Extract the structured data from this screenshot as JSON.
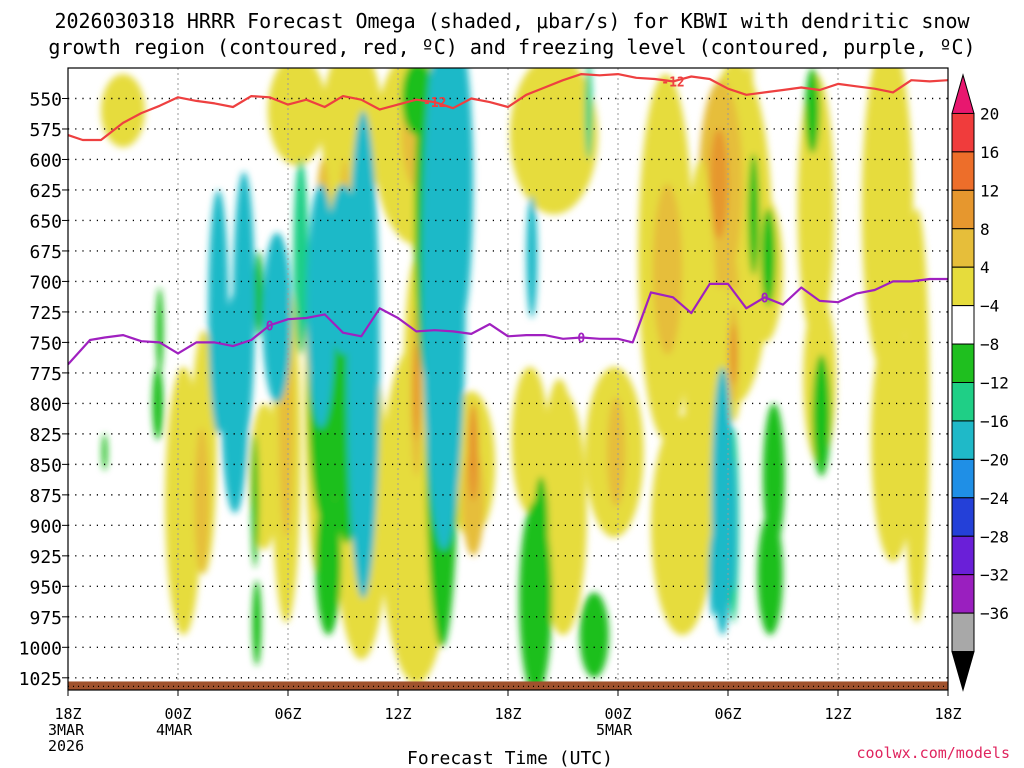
{
  "title": {
    "line1": "2026030318 HRRR Forecast Omega (shaded, μbar/s) for KBWI with dendritic snow",
    "line2": "growth region (contoured, red, ºC) and freezing level (contoured, purple, ºC)"
  },
  "credit": "coolwx.com/models",
  "chart_data": {
    "type": "contour-time-height",
    "title": "2026030318 HRRR Forecast Omega (shaded, μbar/s) for KBWI with dendritic snow growth region (contoured, red, ºC) and freezing level (contoured, purple, ºC)",
    "xlabel": "Forecast Time (UTC)",
    "ylabel": "",
    "xlim_hours": [
      0,
      48
    ],
    "ylim_hPa": [
      525,
      1035
    ],
    "x_ticks": [
      {
        "h": 0,
        "lines": [
          "18Z",
          "3MAR",
          "2026"
        ]
      },
      {
        "h": 6,
        "lines": [
          "00Z",
          "4MAR"
        ]
      },
      {
        "h": 12,
        "lines": [
          "06Z"
        ]
      },
      {
        "h": 18,
        "lines": [
          "12Z"
        ]
      },
      {
        "h": 24,
        "lines": [
          "18Z"
        ]
      },
      {
        "h": 30,
        "lines": [
          "00Z",
          "5MAR"
        ]
      },
      {
        "h": 36,
        "lines": [
          "06Z"
        ]
      },
      {
        "h": 42,
        "lines": [
          "12Z"
        ]
      },
      {
        "h": 48,
        "lines": [
          "18Z"
        ]
      }
    ],
    "y_ticks": [
      550,
      575,
      600,
      625,
      650,
      675,
      700,
      725,
      750,
      775,
      800,
      825,
      850,
      875,
      900,
      925,
      950,
      975,
      1000,
      1025
    ],
    "colorbar": {
      "labels": [
        "20",
        "16",
        "12",
        "8",
        "4",
        "−4",
        "−8",
        "−12",
        "−16",
        "−20",
        "−24",
        "−28",
        "−32",
        "−36"
      ],
      "colors": [
        "#e8176f",
        "#f03c3c",
        "#ed6e2a",
        "#e6972e",
        "#e6be3a",
        "#e6dc3c",
        "#ffffff",
        "#1fbf1f",
        "#1fcf86",
        "#1fb9c8",
        "#1f8fe6",
        "#2440d8",
        "#6a1fd8",
        "#9a1fbf",
        "#a8a8a8",
        "#000000"
      ]
    },
    "contours": [
      {
        "name": "dendritic snow growth -12C",
        "label": "-12",
        "color": "#ee4040",
        "hours": [
          0,
          0.8,
          1.8,
          3,
          4,
          5,
          6,
          7,
          8,
          9,
          10,
          11,
          12,
          13,
          14,
          15,
          16,
          17,
          18,
          19,
          20,
          21,
          22,
          23,
          24,
          25,
          26,
          27,
          28,
          29,
          30,
          31,
          32,
          33,
          34,
          35,
          36,
          37,
          38,
          39,
          40,
          41,
          42,
          43,
          44,
          45,
          46,
          47,
          48
        ],
        "pres": [
          580,
          584,
          584,
          570,
          562,
          556,
          549,
          552,
          554,
          557,
          548,
          549,
          555,
          551,
          557,
          548,
          551,
          559,
          555,
          551,
          553,
          558,
          550,
          553,
          557,
          547,
          541,
          535,
          530,
          531,
          530,
          533,
          534,
          536,
          532,
          534,
          542,
          547,
          545,
          543,
          541,
          543,
          538,
          540,
          542,
          545,
          535,
          536,
          535
        ]
      },
      {
        "name": "freezing level 0C",
        "label": "0",
        "color": "#a020c0",
        "hours": [
          0,
          1.2,
          2,
          3,
          4,
          5,
          6,
          7,
          8,
          9,
          10,
          11,
          12,
          13,
          14,
          15,
          16,
          17,
          18,
          19,
          20,
          21,
          22,
          23,
          24,
          25,
          26,
          27,
          28,
          29,
          30,
          30.8,
          31.8,
          33,
          34,
          35,
          36,
          37,
          38,
          39,
          40,
          41,
          42,
          43,
          44,
          45,
          46,
          47,
          48
        ],
        "pres": [
          768,
          748,
          746,
          744,
          749,
          750,
          759,
          750,
          750,
          753,
          748,
          736,
          731,
          730,
          727,
          742,
          745,
          722,
          730,
          741,
          740,
          741,
          743,
          735,
          745,
          744,
          744,
          747,
          746,
          747,
          747,
          750,
          709,
          713,
          726,
          702,
          702,
          722,
          713,
          719,
          705,
          716,
          717,
          710,
          707,
          700,
          700,
          698,
          698
        ]
      }
    ],
    "omega_cells": [
      {
        "h": 12.5,
        "p": 560,
        "rh": 1.6,
        "rp": 45,
        "v": 4
      },
      {
        "h": 15.5,
        "p": 575,
        "rh": 1.7,
        "rp": 70,
        "v": 4
      },
      {
        "h": 19.0,
        "p": 590,
        "rh": 2.3,
        "rp": 80,
        "v": 4
      },
      {
        "h": 20.2,
        "p": 630,
        "rh": 1.6,
        "rp": 90,
        "v": 4
      },
      {
        "h": 19.1,
        "p": 580,
        "rh": 0.9,
        "rp": 45,
        "v": 8
      },
      {
        "h": 26.5,
        "p": 580,
        "rh": 2.4,
        "rp": 65,
        "v": 4
      },
      {
        "h": 32.6,
        "p": 680,
        "rh": 1.5,
        "rp": 150,
        "v": 4
      },
      {
        "h": 36.4,
        "p": 660,
        "rh": 2.0,
        "rp": 140,
        "v": 4
      },
      {
        "h": 35.6,
        "p": 620,
        "rh": 1.2,
        "rp": 85,
        "v": 8
      },
      {
        "h": 35.5,
        "p": 620,
        "rh": 0.5,
        "rp": 45,
        "v": 12
      },
      {
        "h": 32.7,
        "p": 690,
        "rh": 0.8,
        "rp": 70,
        "v": 8
      },
      {
        "h": 40.8,
        "p": 640,
        "rh": 1.0,
        "rp": 110,
        "v": 4
      },
      {
        "h": 44.7,
        "p": 640,
        "rh": 1.4,
        "rp": 140,
        "v": 4
      },
      {
        "h": 13.6,
        "p": 790,
        "rh": 0.7,
        "rp": 150,
        "v": 4
      },
      {
        "h": 15.3,
        "p": 790,
        "rh": 0.7,
        "rp": 120,
        "v": 4
      },
      {
        "h": 16.2,
        "p": 870,
        "rh": 0.9,
        "rp": 100,
        "v": 4
      },
      {
        "h": 19.0,
        "p": 790,
        "rh": 0.7,
        "rp": 110,
        "v": 4
      },
      {
        "h": 15.3,
        "p": 650,
        "rh": 1.2,
        "rp": 70,
        "v": 4
      },
      {
        "h": 22.0,
        "p": 850,
        "rh": 1.3,
        "rp": 60,
        "v": 4
      },
      {
        "h": 26.8,
        "p": 860,
        "rh": 0.9,
        "rp": 80,
        "v": 4
      },
      {
        "h": 25.2,
        "p": 830,
        "rh": 1.0,
        "rp": 60,
        "v": 4
      },
      {
        "h": 29.8,
        "p": 840,
        "rh": 1.6,
        "rp": 70,
        "v": 4
      },
      {
        "h": 34.5,
        "p": 770,
        "rh": 0.9,
        "rp": 170,
        "v": 4
      },
      {
        "h": 38.0,
        "p": 690,
        "rh": 1.0,
        "rp": 60,
        "v": 4
      },
      {
        "h": 41.0,
        "p": 780,
        "rh": 0.9,
        "rp": 70,
        "v": 4
      },
      {
        "h": 45.0,
        "p": 830,
        "rh": 1.2,
        "rp": 100,
        "v": 4
      },
      {
        "h": 46.3,
        "p": 810,
        "rh": 0.7,
        "rp": 170,
        "v": 4
      },
      {
        "h": 6.3,
        "p": 880,
        "rh": 1.0,
        "rp": 110,
        "v": 4
      },
      {
        "h": 7.4,
        "p": 840,
        "rh": 0.7,
        "rp": 100,
        "v": 4
      },
      {
        "h": 10.7,
        "p": 860,
        "rh": 0.8,
        "rp": 60,
        "v": 4
      },
      {
        "h": 11.9,
        "p": 840,
        "rh": 0.8,
        "rp": 140,
        "v": 4
      },
      {
        "h": 16.0,
        "p": 880,
        "rh": 1.5,
        "rp": 130,
        "v": 4
      },
      {
        "h": 19.0,
        "p": 890,
        "rh": 2.0,
        "rp": 140,
        "v": 4
      },
      {
        "h": 27.0,
        "p": 890,
        "rh": 1.3,
        "rp": 100,
        "v": 4
      },
      {
        "h": 33.5,
        "p": 900,
        "rh": 1.7,
        "rp": 90,
        "v": 4
      },
      {
        "h": 37.2,
        "p": 640,
        "rh": 0.3,
        "rp": 130,
        "v": 4
      },
      {
        "h": 3.0,
        "p": 560,
        "rh": 1.2,
        "rp": 30,
        "v": 4
      },
      {
        "h": 7.3,
        "p": 880,
        "rh": 0.4,
        "rp": 60,
        "v": 8
      },
      {
        "h": 15.1,
        "p": 660,
        "rh": 0.3,
        "rp": 60,
        "v": 8
      },
      {
        "h": 22.1,
        "p": 880,
        "rh": 0.6,
        "rp": 45,
        "v": 8
      },
      {
        "h": 36.3,
        "p": 720,
        "rh": 0.3,
        "rp": 40,
        "v": 8
      },
      {
        "h": 29.9,
        "p": 840,
        "rh": 0.5,
        "rp": 45,
        "v": 8
      },
      {
        "h": 16.2,
        "p": 880,
        "rh": 0.6,
        "rp": 50,
        "v": 8
      },
      {
        "h": 11.9,
        "p": 810,
        "rh": 0.4,
        "rp": 100,
        "v": 8
      },
      {
        "h": 19.0,
        "p": 790,
        "rh": 0.3,
        "rp": 70,
        "v": 8
      },
      {
        "h": 13.9,
        "p": 660,
        "rh": 0.4,
        "rp": 60,
        "v": 8
      },
      {
        "h": 16.1,
        "p": 880,
        "rh": 0.5,
        "rp": 55,
        "v": 12
      },
      {
        "h": 16.1,
        "p": 880,
        "rh": 0.35,
        "rp": 40,
        "v": 16
      },
      {
        "h": 16.1,
        "p": 880,
        "rh": 0.25,
        "rp": 30,
        "v": 20
      },
      {
        "h": 22.1,
        "p": 840,
        "rh": 0.3,
        "rp": 40,
        "v": 12
      },
      {
        "h": 19.0,
        "p": 790,
        "rh": 0.2,
        "rp": 40,
        "v": 12
      },
      {
        "h": 36.3,
        "p": 760,
        "rh": 0.5,
        "rp": 55,
        "v": 4
      },
      {
        "h": 36.3,
        "p": 760,
        "rh": 0.3,
        "rp": 40,
        "v": 8
      },
      {
        "h": 36.3,
        "p": 760,
        "rh": 0.2,
        "rp": 25,
        "v": 12
      },
      {
        "h": 5.0,
        "p": 740,
        "rh": 0.2,
        "rp": 35,
        "v": -4
      },
      {
        "h": 4.9,
        "p": 800,
        "rh": 0.3,
        "rp": 30,
        "v": -4
      },
      {
        "h": 2.0,
        "p": 840,
        "rh": 0.15,
        "rp": 15,
        "v": -4
      },
      {
        "h": 8.3,
        "p": 700,
        "rh": 0.3,
        "rp": 50,
        "v": -4
      },
      {
        "h": 10.4,
        "p": 710,
        "rh": 0.25,
        "rp": 35,
        "v": -4
      },
      {
        "h": 10.2,
        "p": 880,
        "rh": 0.2,
        "rp": 55,
        "v": -4
      },
      {
        "h": 10.3,
        "p": 980,
        "rh": 0.25,
        "rp": 35,
        "v": -4
      },
      {
        "h": 14.0,
        "p": 790,
        "rh": 0.9,
        "rp": 110,
        "v": -4
      },
      {
        "h": 15.2,
        "p": 820,
        "rh": 0.8,
        "rp": 95,
        "v": -4
      },
      {
        "h": 14.2,
        "p": 930,
        "rh": 0.7,
        "rp": 60,
        "v": -4
      },
      {
        "h": 19.5,
        "p": 650,
        "rh": 0.6,
        "rp": 130,
        "v": -4
      },
      {
        "h": 20.4,
        "p": 820,
        "rh": 0.9,
        "rp": 180,
        "v": -4
      },
      {
        "h": 25.5,
        "p": 960,
        "rh": 0.9,
        "rp": 80,
        "v": -4
      },
      {
        "h": 25.8,
        "p": 900,
        "rh": 0.4,
        "rp": 40,
        "v": -4
      },
      {
        "h": 28.7,
        "p": 990,
        "rh": 0.8,
        "rp": 35,
        "v": -4
      },
      {
        "h": 37.4,
        "p": 645,
        "rh": 0.3,
        "rp": 50,
        "v": -4
      },
      {
        "h": 38.3,
        "p": 940,
        "rh": 0.7,
        "rp": 50,
        "v": -4
      },
      {
        "h": 38.5,
        "p": 860,
        "rh": 0.6,
        "rp": 60,
        "v": -4
      },
      {
        "h": 38.2,
        "p": 680,
        "rh": 0.4,
        "rp": 40,
        "v": -4
      },
      {
        "h": 35.7,
        "p": 930,
        "rh": 0.4,
        "rp": 60,
        "v": -4
      },
      {
        "h": 41.1,
        "p": 810,
        "rh": 0.5,
        "rp": 50,
        "v": -4
      },
      {
        "h": 40.6,
        "p": 560,
        "rh": 0.4,
        "rp": 35,
        "v": -4
      },
      {
        "h": 19.0,
        "p": 550,
        "rh": 0.8,
        "rp": 30,
        "v": -4
      },
      {
        "h": 20.4,
        "p": 780,
        "rh": 0.6,
        "rp": 120,
        "v": -8
      },
      {
        "h": 20.5,
        "p": 600,
        "rh": 0.5,
        "rp": 80,
        "v": -8
      },
      {
        "h": 12.7,
        "p": 680,
        "rh": 0.4,
        "rp": 80,
        "v": -8
      },
      {
        "h": 36.3,
        "p": 900,
        "rh": 0.3,
        "rp": 80,
        "v": -8
      },
      {
        "h": 36.3,
        "p": 900,
        "rh": 0.2,
        "rp": 55,
        "v": -12
      },
      {
        "h": 28.4,
        "p": 560,
        "rh": 0.2,
        "rp": 40,
        "v": -8
      }
    ],
    "omega_min_cells": [
      {
        "h": 8.2,
        "p": 725,
        "rh": 0.55,
        "rp": 100
      },
      {
        "h": 9.1,
        "p": 800,
        "rh": 0.75,
        "rp": 90
      },
      {
        "h": 9.6,
        "p": 720,
        "rh": 0.6,
        "rp": 110
      },
      {
        "h": 9.7,
        "p": 700,
        "rh": 0.45,
        "rp": 60
      },
      {
        "h": 11.4,
        "p": 730,
        "rh": 0.8,
        "rp": 70
      },
      {
        "h": 13.8,
        "p": 720,
        "rh": 0.8,
        "rp": 100
      },
      {
        "h": 15.0,
        "p": 690,
        "rh": 0.9,
        "rp": 70
      },
      {
        "h": 16.1,
        "p": 760,
        "rh": 0.9,
        "rp": 200
      },
      {
        "h": 16.2,
        "p": 730,
        "rh": 0.45,
        "rp": 95
      },
      {
        "h": 20.5,
        "p": 700,
        "rh": 1.2,
        "rp": 220
      },
      {
        "h": 25.3,
        "p": 680,
        "rh": 0.3,
        "rp": 50
      },
      {
        "h": 21.3,
        "p": 620,
        "rh": 0.8,
        "rp": 120
      },
      {
        "h": 20.7,
        "p": 670,
        "rh": 0.4,
        "rp": 60
      },
      {
        "h": 35.7,
        "p": 880,
        "rh": 0.6,
        "rp": 110
      },
      {
        "h": 35.6,
        "p": 880,
        "rh": 0.35,
        "rp": 75
      },
      {
        "h": 35.2,
        "p": 940,
        "rh": 0.25,
        "rp": 35
      }
    ]
  }
}
